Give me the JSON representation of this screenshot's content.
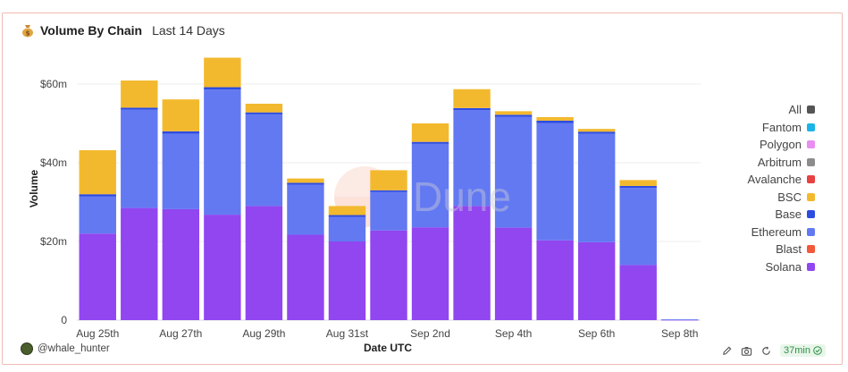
{
  "header": {
    "icon": "money-bag-icon",
    "title": "Volume By Chain",
    "subtitle": "Last 14 Days"
  },
  "watermark": "Dune",
  "footer": {
    "author": "@whale_hunter",
    "refresh": "37min",
    "icons": [
      "edit-icon",
      "camera-icon",
      "refresh-icon",
      "check-icon"
    ]
  },
  "legend": [
    {
      "name": "All",
      "color": "#555555"
    },
    {
      "name": "Fantom",
      "color": "#1ab5e6"
    },
    {
      "name": "Polygon",
      "color": "#e98ef0"
    },
    {
      "name": "Arbitrum",
      "color": "#8c8c8c"
    },
    {
      "name": "Avalanche",
      "color": "#e84142"
    },
    {
      "name": "BSC",
      "color": "#f3b92e"
    },
    {
      "name": "Base",
      "color": "#2d4ce0"
    },
    {
      "name": "Ethereum",
      "color": "#6379f2"
    },
    {
      "name": "Blast",
      "color": "#f2583a"
    },
    {
      "name": "Solana",
      "color": "#9146f0"
    }
  ],
  "chart_data": {
    "type": "bar",
    "stacked": true,
    "xlabel": "Date UTC",
    "ylabel": "Volume",
    "ylim": [
      0,
      70
    ],
    "yticks": [
      0,
      20,
      40,
      60
    ],
    "ytick_labels": [
      "0",
      "$20m",
      "$40m",
      "$60m"
    ],
    "categories": [
      "Aug 25th",
      "Aug 26th",
      "Aug 27th",
      "Aug 28th",
      "Aug 29th",
      "Aug 30th",
      "Aug 31st",
      "Sep 1st",
      "Sep 2nd",
      "Sep 3rd",
      "Sep 4th",
      "Sep 5th",
      "Sep 6th",
      "Sep 7th",
      "Sep 8th"
    ],
    "xtick_labels": [
      "Aug 25th",
      "",
      "Aug 27th",
      "",
      "Aug 29th",
      "",
      "Aug 31st",
      "",
      "Sep 2nd",
      "",
      "Sep 4th",
      "",
      "Sep 6th",
      "",
      "Sep 8th"
    ],
    "units": "$m",
    "series": [
      {
        "name": "Solana",
        "color": "#9146f0",
        "values": [
          22,
          28.5,
          28.2,
          26.8,
          29,
          21.7,
          20,
          22.8,
          23.6,
          29,
          23.5,
          20.3,
          19.8,
          14,
          0.1
        ]
      },
      {
        "name": "Ethereum",
        "color": "#6379f2",
        "values": [
          9.4,
          25,
          19.2,
          31.8,
          23.3,
          12.7,
          6.2,
          9.8,
          21.2,
          24.4,
          28.2,
          29.8,
          27.6,
          19.6,
          0.1
        ]
      },
      {
        "name": "Base",
        "color": "#2d4ce0",
        "values": [
          0.6,
          0.5,
          0.6,
          0.6,
          0.5,
          0.5,
          0.5,
          0.4,
          0.5,
          0.5,
          0.5,
          0.6,
          0.5,
          0.5,
          0
        ]
      },
      {
        "name": "BSC",
        "color": "#f3b92e",
        "values": [
          11.2,
          6.9,
          8.1,
          7.5,
          2.2,
          1.1,
          2.3,
          5.1,
          4.7,
          4.8,
          0.9,
          0.9,
          0.7,
          1.5,
          0
        ]
      }
    ]
  }
}
